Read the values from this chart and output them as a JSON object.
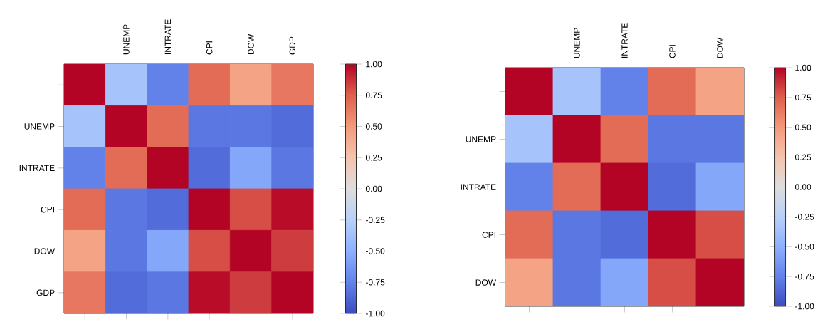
{
  "chart_data": [
    {
      "type": "heatmap",
      "categories": [
        null,
        "UNEMP",
        "INTRATE",
        "CPI",
        "DOW",
        "GDP"
      ],
      "y_categories": [
        null,
        "UNEMP",
        "INTRATE",
        "CPI",
        "DOW",
        "GDP"
      ],
      "cells": [
        [
          1,
          -0.35,
          -0.75,
          0.7,
          0.45,
          0.65
        ],
        [
          -0.35,
          1,
          0.7,
          -0.8,
          -0.8,
          -0.85
        ],
        [
          -0.75,
          0.7,
          1,
          -0.85,
          -0.55,
          -0.8
        ],
        [
          0.7,
          -0.8,
          -0.85,
          1,
          0.8,
          0.98
        ],
        [
          0.45,
          -0.8,
          -0.55,
          0.8,
          1,
          0.85
        ],
        [
          0.65,
          -0.85,
          -0.8,
          0.98,
          0.85,
          1
        ]
      ],
      "clim": [
        -1,
        1
      ],
      "cticks": [
        {
          "value": -1,
          "label": "-1.00"
        },
        {
          "value": -0.75,
          "label": "-0.75"
        },
        {
          "value": -0.5,
          "label": "-0.50"
        },
        {
          "value": -0.25,
          "label": "-0.25"
        },
        {
          "value": 0,
          "label": "0.00"
        },
        {
          "value": 0.25,
          "label": "0.25"
        },
        {
          "value": 0.5,
          "label": "0.50"
        },
        {
          "value": 0.75,
          "label": "0.75"
        },
        {
          "value": 1,
          "label": "1.00"
        }
      ]
    },
    {
      "type": "heatmap",
      "categories": [
        null,
        "UNEMP",
        "INTRATE",
        "CPI",
        "DOW"
      ],
      "y_categories": [
        null,
        "UNEMP",
        "INTRATE",
        "CPI",
        "DOW"
      ],
      "cells": [
        [
          1,
          -0.35,
          -0.75,
          0.7,
          0.45
        ],
        [
          -0.35,
          1,
          0.7,
          -0.8,
          -0.8
        ],
        [
          -0.75,
          0.7,
          1,
          -0.85,
          -0.55
        ],
        [
          0.7,
          -0.8,
          -0.85,
          1,
          0.8
        ],
        [
          0.45,
          -0.8,
          -0.55,
          0.8,
          1
        ]
      ],
      "clim": [
        -1,
        1
      ],
      "cticks": [
        {
          "value": -1,
          "label": "-1.00"
        },
        {
          "value": -0.75,
          "label": "-0.75"
        },
        {
          "value": -0.5,
          "label": "-0.50"
        },
        {
          "value": -0.25,
          "label": "-0.25"
        },
        {
          "value": 0,
          "label": "0.00"
        },
        {
          "value": 0.25,
          "label": "0.25"
        },
        {
          "value": 0.5,
          "label": "0.50"
        },
        {
          "value": 0.75,
          "label": "0.75"
        },
        {
          "value": 1,
          "label": "1.00"
        }
      ]
    }
  ]
}
